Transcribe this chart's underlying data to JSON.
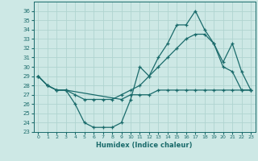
{
  "xlabel": "Humidex (Indice chaleur)",
  "background_color": "#cde8e5",
  "grid_color": "#b0d4d0",
  "line_color": "#1a6b6b",
  "xlim": [
    -0.5,
    23.5
  ],
  "ylim": [
    23,
    37
  ],
  "yticks": [
    23,
    24,
    25,
    26,
    27,
    28,
    29,
    30,
    31,
    32,
    33,
    34,
    35,
    36
  ],
  "xticks": [
    0,
    1,
    2,
    3,
    4,
    5,
    6,
    7,
    8,
    9,
    10,
    11,
    12,
    13,
    14,
    15,
    16,
    17,
    18,
    19,
    20,
    21,
    22,
    23
  ],
  "line1_x": [
    0,
    1,
    2,
    3,
    4,
    5,
    6,
    7,
    8,
    9,
    10,
    11,
    12,
    13,
    14,
    15,
    16,
    17,
    18,
    19,
    20,
    21,
    22,
    23
  ],
  "line1_y": [
    29.0,
    28.0,
    27.5,
    27.5,
    26.0,
    24.0,
    23.5,
    23.5,
    23.5,
    24.0,
    26.5,
    30.0,
    29.0,
    31.0,
    32.5,
    34.5,
    34.5,
    36.0,
    34.0,
    32.5,
    30.0,
    29.5,
    27.5,
    27.5
  ],
  "line2_x": [
    0,
    1,
    2,
    3,
    9,
    10,
    11,
    12,
    13,
    14,
    15,
    16,
    17,
    18,
    19,
    20,
    21,
    22,
    23
  ],
  "line2_y": [
    29.0,
    28.0,
    27.5,
    27.5,
    26.5,
    27.0,
    27.0,
    27.0,
    27.5,
    27.5,
    27.5,
    27.5,
    27.5,
    27.5,
    27.5,
    27.5,
    27.5,
    27.5,
    27.5
  ],
  "line3_x": [
    0,
    1,
    2,
    3,
    4,
    5,
    6,
    7,
    8,
    9,
    10,
    11,
    12,
    13,
    14,
    15,
    16,
    17,
    18,
    19,
    20,
    21,
    22,
    23
  ],
  "line3_y": [
    29.0,
    28.0,
    27.5,
    27.5,
    27.0,
    26.5,
    26.5,
    26.5,
    26.5,
    27.0,
    27.5,
    28.0,
    29.0,
    30.0,
    31.0,
    32.0,
    33.0,
    33.5,
    33.5,
    32.5,
    30.5,
    32.5,
    29.5,
    27.5
  ]
}
